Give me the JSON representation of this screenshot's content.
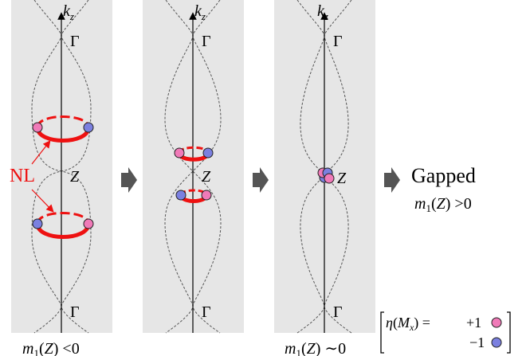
{
  "panels": [
    {
      "axis_label": "kz",
      "gamma_top": "Γ",
      "gamma_bottom": "Γ",
      "z_label": "Z",
      "caption": "m1(Z) <0",
      "nodal_lines": [
        {
          "upper": true,
          "left_marker": "+1",
          "right_marker": "-1"
        },
        {
          "upper": false,
          "left_marker": "-1",
          "right_marker": "+1"
        }
      ]
    },
    {
      "axis_label": "kz",
      "gamma_top": "Γ",
      "gamma_bottom": "Γ",
      "z_label": "Z",
      "caption": ""
    },
    {
      "axis_label": "kz",
      "gamma_top": "Γ",
      "gamma_bottom": "Γ",
      "z_label": "Z",
      "caption": "m1(Z) ∼0"
    }
  ],
  "nl_label": "NL",
  "gapped_label": "Gapped",
  "gapped_condition": "m1(Z) >0",
  "legend": {
    "eta_label": "η(Mx) =",
    "plus_value": "+1",
    "minus_value": "−1"
  },
  "colors": {
    "panel_bg": "#e6e6e6",
    "nodal_line": "#ee1111",
    "plus_marker": "#f07ab8",
    "minus_marker": "#7b80e0",
    "arrow": "#555555",
    "nl_text": "#ee1111"
  }
}
